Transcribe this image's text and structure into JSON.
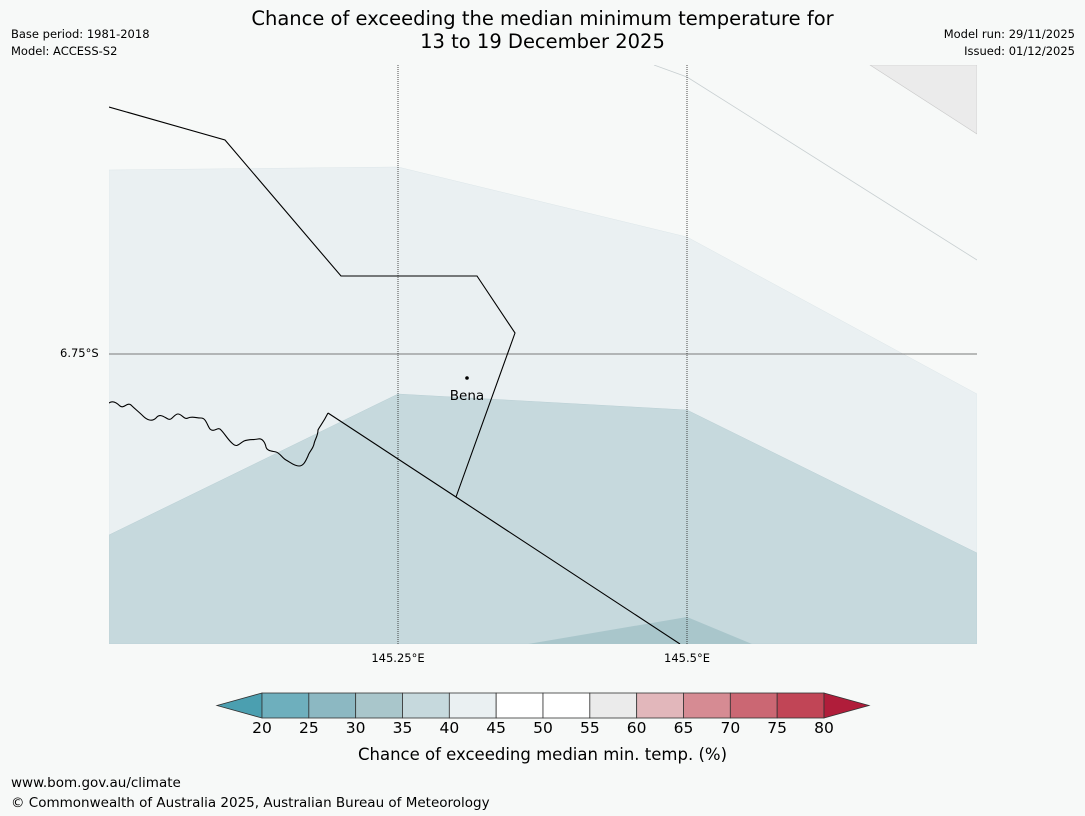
{
  "header": {
    "title_line1": "Chance of exceeding the median minimum temperature for",
    "title_line2": "13 to 19 December 2025",
    "base_period": "Base period: 1981-2018",
    "model": "Model: ACCESS-S2",
    "model_run": "Model run: 29/11/2025",
    "issued": "Issued: 01/12/2025"
  },
  "map": {
    "latitude_labels": [
      "6.75°S"
    ],
    "longitude_labels": [
      "145.25°E",
      "145.5°E"
    ],
    "places": [
      {
        "name": "Bena"
      }
    ],
    "colors": {
      "band_40_45": "#eaf0f2",
      "band_35_40": "#c6d9dd",
      "band_30_35": "#a9c6cb",
      "band_55_60": "#ebebeb",
      "land_background": "#f7f9f8"
    }
  },
  "colorbar": {
    "ticks": [
      "20",
      "25",
      "30",
      "35",
      "40",
      "45",
      "50",
      "55",
      "60",
      "65",
      "70",
      "75",
      "80"
    ],
    "colors": [
      "#4b9fb0",
      "#6eafbd",
      "#8cb8c2",
      "#a9c6cb",
      "#c6d9dd",
      "#eaf0f2",
      "#ffffff",
      "#ffffff",
      "#ebebeb",
      "#e2b7bb",
      "#d68b93",
      "#cb6773",
      "#c14556",
      "#b01d3a"
    ],
    "label": "Chance of exceeding median min. temp. (%)"
  },
  "footer": {
    "url": "www.bom.gov.au/climate",
    "copyright": "© Commonwealth of Australia 2025, Australian Bureau of Meteorology"
  }
}
